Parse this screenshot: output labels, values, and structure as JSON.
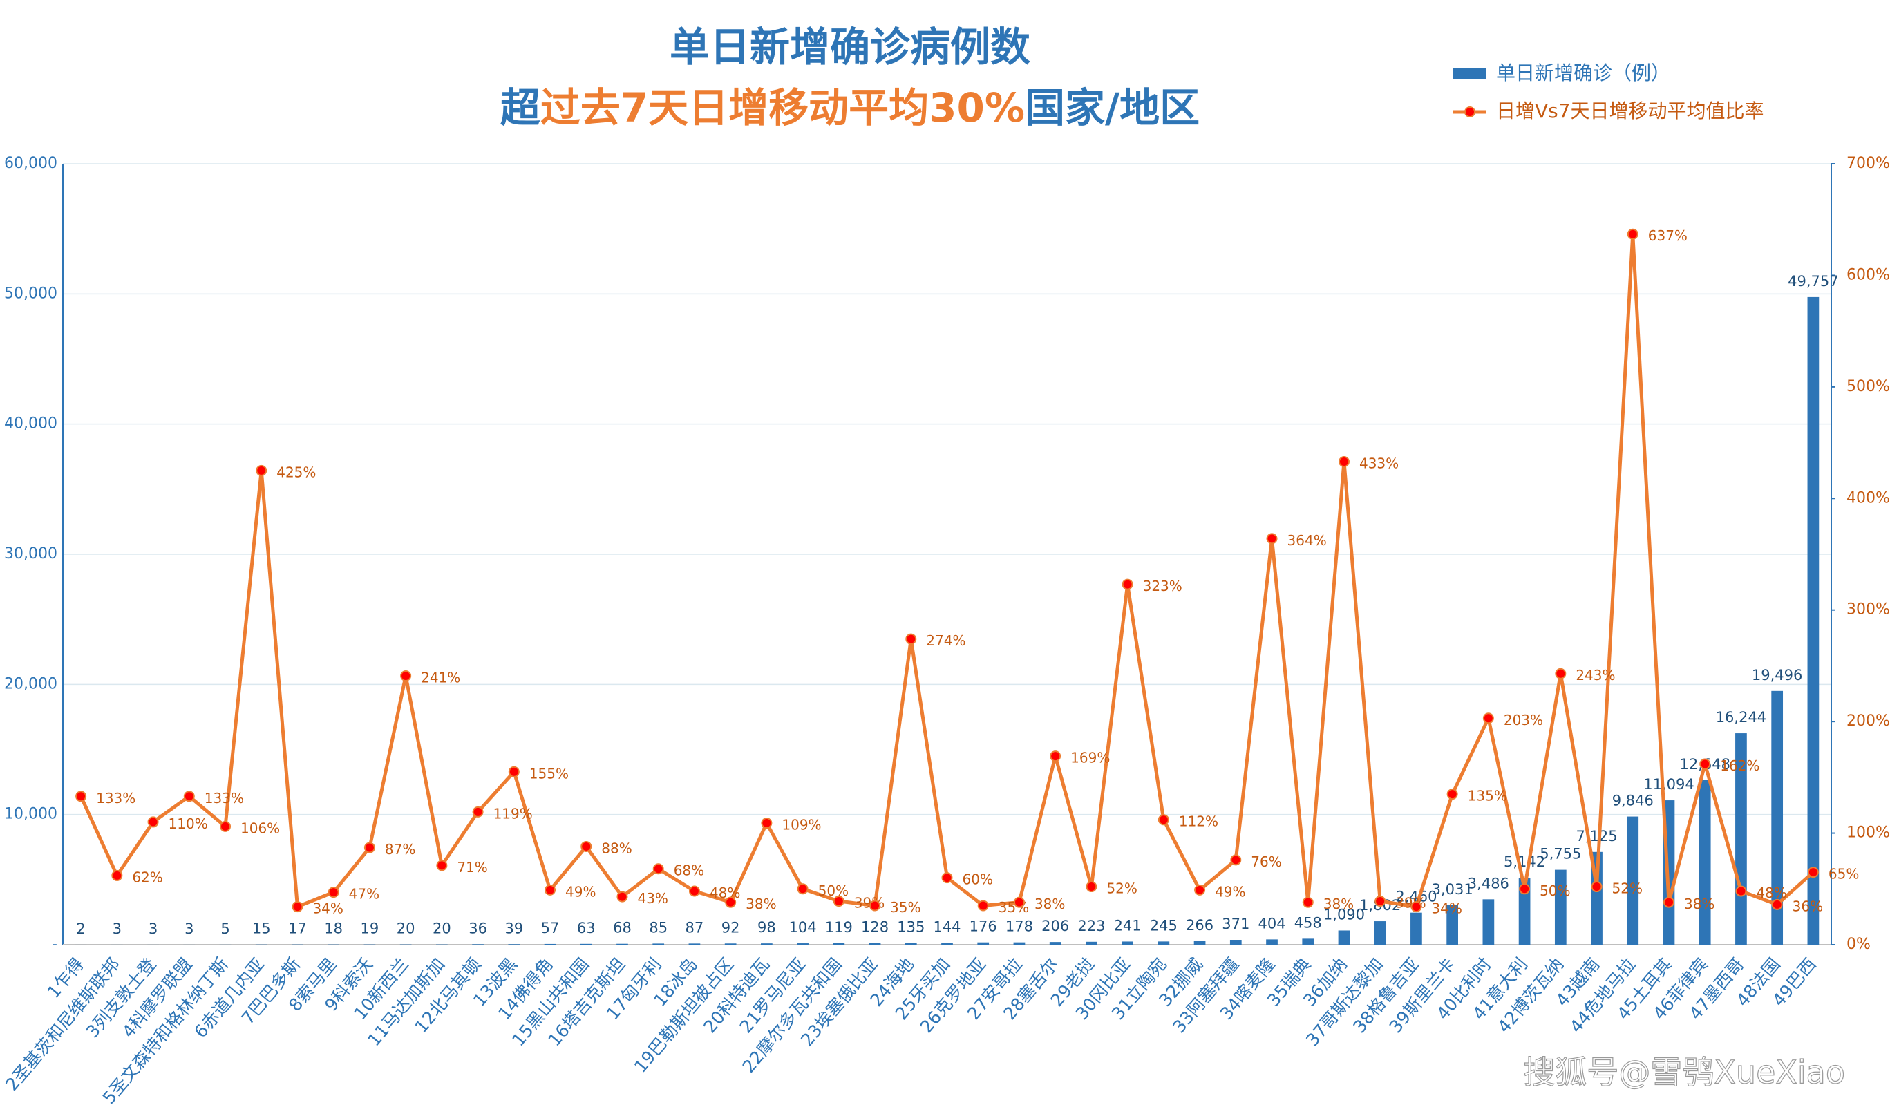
{
  "chart_data": {
    "type": "bar",
    "title": "单日新增确诊病例数",
    "subtitle_parts": [
      "超",
      "过去7天日增移动平均30%",
      "国家/地区"
    ],
    "watermark": "搜狐号@雪鸮XueXiao",
    "legend": "upper right",
    "grid": true,
    "categories": [
      "1乍得",
      "2圣基茨和尼维斯联邦",
      "3列支敦士登",
      "4科摩罗联盟",
      "5圣文森特和格林纳丁斯",
      "6赤道几内亚",
      "7巴巴多斯",
      "8索马里",
      "9科索沃",
      "10新西兰",
      "11马达加斯加",
      "12北马其顿",
      "13波黑",
      "14佛得角",
      "15黑山共和国",
      "16塔吉克斯坦",
      "17匈牙利",
      "18冰岛",
      "19巴勒斯坦被占区",
      "20科特迪瓦",
      "21罗马尼亚",
      "22摩尔多瓦共和国",
      "23埃塞俄比亚",
      "24海地",
      "25牙买加",
      "26克罗地亚",
      "27安哥拉",
      "28塞舌尔",
      "29老挝",
      "30冈比亚",
      "31立陶宛",
      "32挪威",
      "33阿塞拜疆",
      "34喀麦隆",
      "35瑞典",
      "36加纳",
      "37哥斯达黎加",
      "38格鲁吉亚",
      "39斯里兰卡",
      "40比利时",
      "41意大利",
      "42博茨瓦纳",
      "43越南",
      "44危地马拉",
      "45土耳其",
      "46菲律宾",
      "47墨西哥",
      "48法国",
      "49巴西"
    ],
    "series": [
      {
        "name": "单日新增确诊（例）",
        "type": "bar",
        "color": "#2e75b6",
        "values": [
          2,
          3,
          3,
          3,
          5,
          15,
          17,
          18,
          19,
          20,
          20,
          36,
          39,
          57,
          63,
          68,
          85,
          87,
          92,
          98,
          104,
          119,
          128,
          135,
          144,
          176,
          178,
          206,
          223,
          241,
          245,
          266,
          371,
          404,
          458,
          1090,
          1802,
          2460,
          3031,
          3486,
          5142,
          5755,
          7125,
          9846,
          11094,
          12648,
          16244,
          19496,
          49757
        ],
        "value_labels": [
          "2",
          "3",
          "3",
          "3",
          "5",
          "15",
          "17",
          "18",
          "19",
          "20",
          "20",
          "36",
          "39",
          "57",
          "63",
          "68",
          "85",
          "87",
          "92",
          "98",
          "104",
          "119",
          "128",
          "135",
          "144",
          "176",
          "178",
          "206",
          "223",
          "241",
          "245",
          "266",
          "371",
          "404",
          "458",
          "1,090",
          "1,802",
          "2,460",
          "3,031",
          "3,486",
          "5,142",
          "5,755",
          "7,125",
          "9,846",
          "11,094",
          "12,648",
          "16,244",
          "19,496",
          "49,757"
        ]
      },
      {
        "name": "日增Vs7天日增移动平均值比率",
        "type": "line",
        "axis": "y2",
        "color": "#ed7d31",
        "marker_color": "#ff0000",
        "values": [
          133,
          62,
          110,
          133,
          106,
          425,
          34,
          47,
          87,
          241,
          71,
          119,
          155,
          49,
          88,
          43,
          68,
          48,
          38,
          109,
          50,
          39,
          35,
          274,
          60,
          35,
          38,
          169,
          52,
          323,
          112,
          49,
          76,
          364,
          38,
          433,
          39,
          34,
          135,
          203,
          50,
          243,
          52,
          637,
          38,
          162,
          48,
          36,
          65
        ],
        "value_labels": [
          "133%",
          "62%",
          "110%",
          "133%",
          "106%",
          "425%",
          "34%",
          "47%",
          "87%",
          "241%",
          "71%",
          "119%",
          "155%",
          "49%",
          "88%",
          "43%",
          "68%",
          "48%",
          "38%",
          "109%",
          "50%",
          "39%",
          "35%",
          "274%",
          "60%",
          "35%",
          "38%",
          "169%",
          "52%",
          "323%",
          "112%",
          "49%",
          "76%",
          "364%",
          "38%",
          "433%",
          "39%",
          "34%",
          "135%",
          "203%",
          "50%",
          "243%",
          "52%",
          "637%",
          "38%",
          "162%",
          "48%",
          "36%",
          "65%"
        ]
      }
    ],
    "ylim": [
      0,
      60000
    ],
    "yticks": [
      {
        "value": 0,
        "label": "-"
      },
      {
        "value": 10000,
        "label": "10,000"
      },
      {
        "value": 20000,
        "label": "20,000"
      },
      {
        "value": 30000,
        "label": "30,000"
      },
      {
        "value": 40000,
        "label": "40,000"
      },
      {
        "value": 50000,
        "label": "50,000"
      },
      {
        "value": 60000,
        "label": "60,000"
      }
    ],
    "y2lim": [
      0,
      700
    ],
    "y2ticks": [
      {
        "value": 0,
        "label": "0%"
      },
      {
        "value": 100,
        "label": "100%"
      },
      {
        "value": 200,
        "label": "200%"
      },
      {
        "value": 300,
        "label": "300%"
      },
      {
        "value": 400,
        "label": "400%"
      },
      {
        "value": 500,
        "label": "500%"
      },
      {
        "value": 600,
        "label": "600%"
      },
      {
        "value": 700,
        "label": "700%"
      }
    ]
  }
}
